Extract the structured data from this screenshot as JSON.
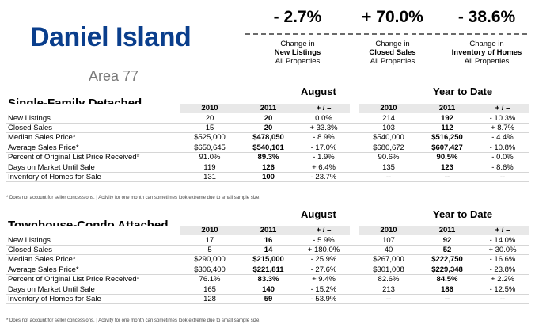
{
  "header": {
    "title": "Daniel Island",
    "subtitle": "Area 77"
  },
  "stats": [
    {
      "value": "- 2.7%",
      "line1": "Change in",
      "line2": "New Listings",
      "line3": "All Properties"
    },
    {
      "value": "+ 70.0%",
      "line1": "Change in",
      "line2": "Closed Sales",
      "line3": "All Properties"
    },
    {
      "value": "- 38.6%",
      "line1": "Change in",
      "line2": "Inventory of Homes",
      "line3": "All Properties"
    }
  ],
  "columns": {
    "y1": "2010",
    "y2": "2011",
    "chg": "+ / –"
  },
  "periods": {
    "month": "August",
    "ytd": "Year to Date"
  },
  "sections": [
    {
      "title": "Single-Family Detached",
      "rows": [
        {
          "label": "New Listings",
          "m10": "20",
          "m11": "20",
          "mch": "0.0%",
          "y10": "214",
          "y11": "192",
          "ych": "- 10.3%"
        },
        {
          "label": "Closed Sales",
          "m10": "15",
          "m11": "20",
          "mch": "+ 33.3%",
          "y10": "103",
          "y11": "112",
          "ych": "+ 8.7%"
        },
        {
          "label": "Median Sales Price*",
          "m10": "$525,000",
          "m11": "$478,050",
          "mch": "- 8.9%",
          "y10": "$540,000",
          "y11": "$516,250",
          "ych": "- 4.4%"
        },
        {
          "label": "Average Sales Price*",
          "m10": "$650,645",
          "m11": "$540,101",
          "mch": "- 17.0%",
          "y10": "$680,672",
          "y11": "$607,427",
          "ych": "- 10.8%"
        },
        {
          "label": "Percent of Original List Price Received*",
          "m10": "91.0%",
          "m11": "89.3%",
          "mch": "- 1.9%",
          "y10": "90.6%",
          "y11": "90.5%",
          "ych": "- 0.0%"
        },
        {
          "label": "Days on Market Until Sale",
          "m10": "119",
          "m11": "126",
          "mch": "+ 6.4%",
          "y10": "135",
          "y11": "123",
          "ych": "- 8.6%"
        },
        {
          "label": "Inventory of Homes for Sale",
          "m10": "131",
          "m11": "100",
          "mch": "- 23.7%",
          "y10": "--",
          "y11": "--",
          "ych": "--"
        }
      ]
    },
    {
      "title": "Townhouse-Condo Attached",
      "rows": [
        {
          "label": "New Listings",
          "m10": "17",
          "m11": "16",
          "mch": "- 5.9%",
          "y10": "107",
          "y11": "92",
          "ych": "- 14.0%"
        },
        {
          "label": "Closed Sales",
          "m10": "5",
          "m11": "14",
          "mch": "+ 180.0%",
          "y10": "40",
          "y11": "52",
          "ych": "+ 30.0%"
        },
        {
          "label": "Median Sales Price*",
          "m10": "$290,000",
          "m11": "$215,000",
          "mch": "- 25.9%",
          "y10": "$267,000",
          "y11": "$222,750",
          "ych": "- 16.6%"
        },
        {
          "label": "Average Sales Price*",
          "m10": "$306,400",
          "m11": "$221,811",
          "mch": "- 27.6%",
          "y10": "$301,008",
          "y11": "$229,348",
          "ych": "- 23.8%"
        },
        {
          "label": "Percent of Original List Price Received*",
          "m10": "76.1%",
          "m11": "83.3%",
          "mch": "+ 9.4%",
          "y10": "82.6%",
          "y11": "84.5%",
          "ych": "+ 2.2%"
        },
        {
          "label": "Days on Market Until Sale",
          "m10": "165",
          "m11": "140",
          "mch": "- 15.2%",
          "y10": "213",
          "y11": "186",
          "ych": "- 12.5%"
        },
        {
          "label": "Inventory of Homes for Sale",
          "m10": "128",
          "m11": "59",
          "mch": "- 53.9%",
          "y10": "--",
          "y11": "--",
          "ych": "--"
        }
      ]
    }
  ],
  "footnote": "* Does not account for seller concessions.  |  Activity for one month can sometimes look extreme due to small sample size."
}
